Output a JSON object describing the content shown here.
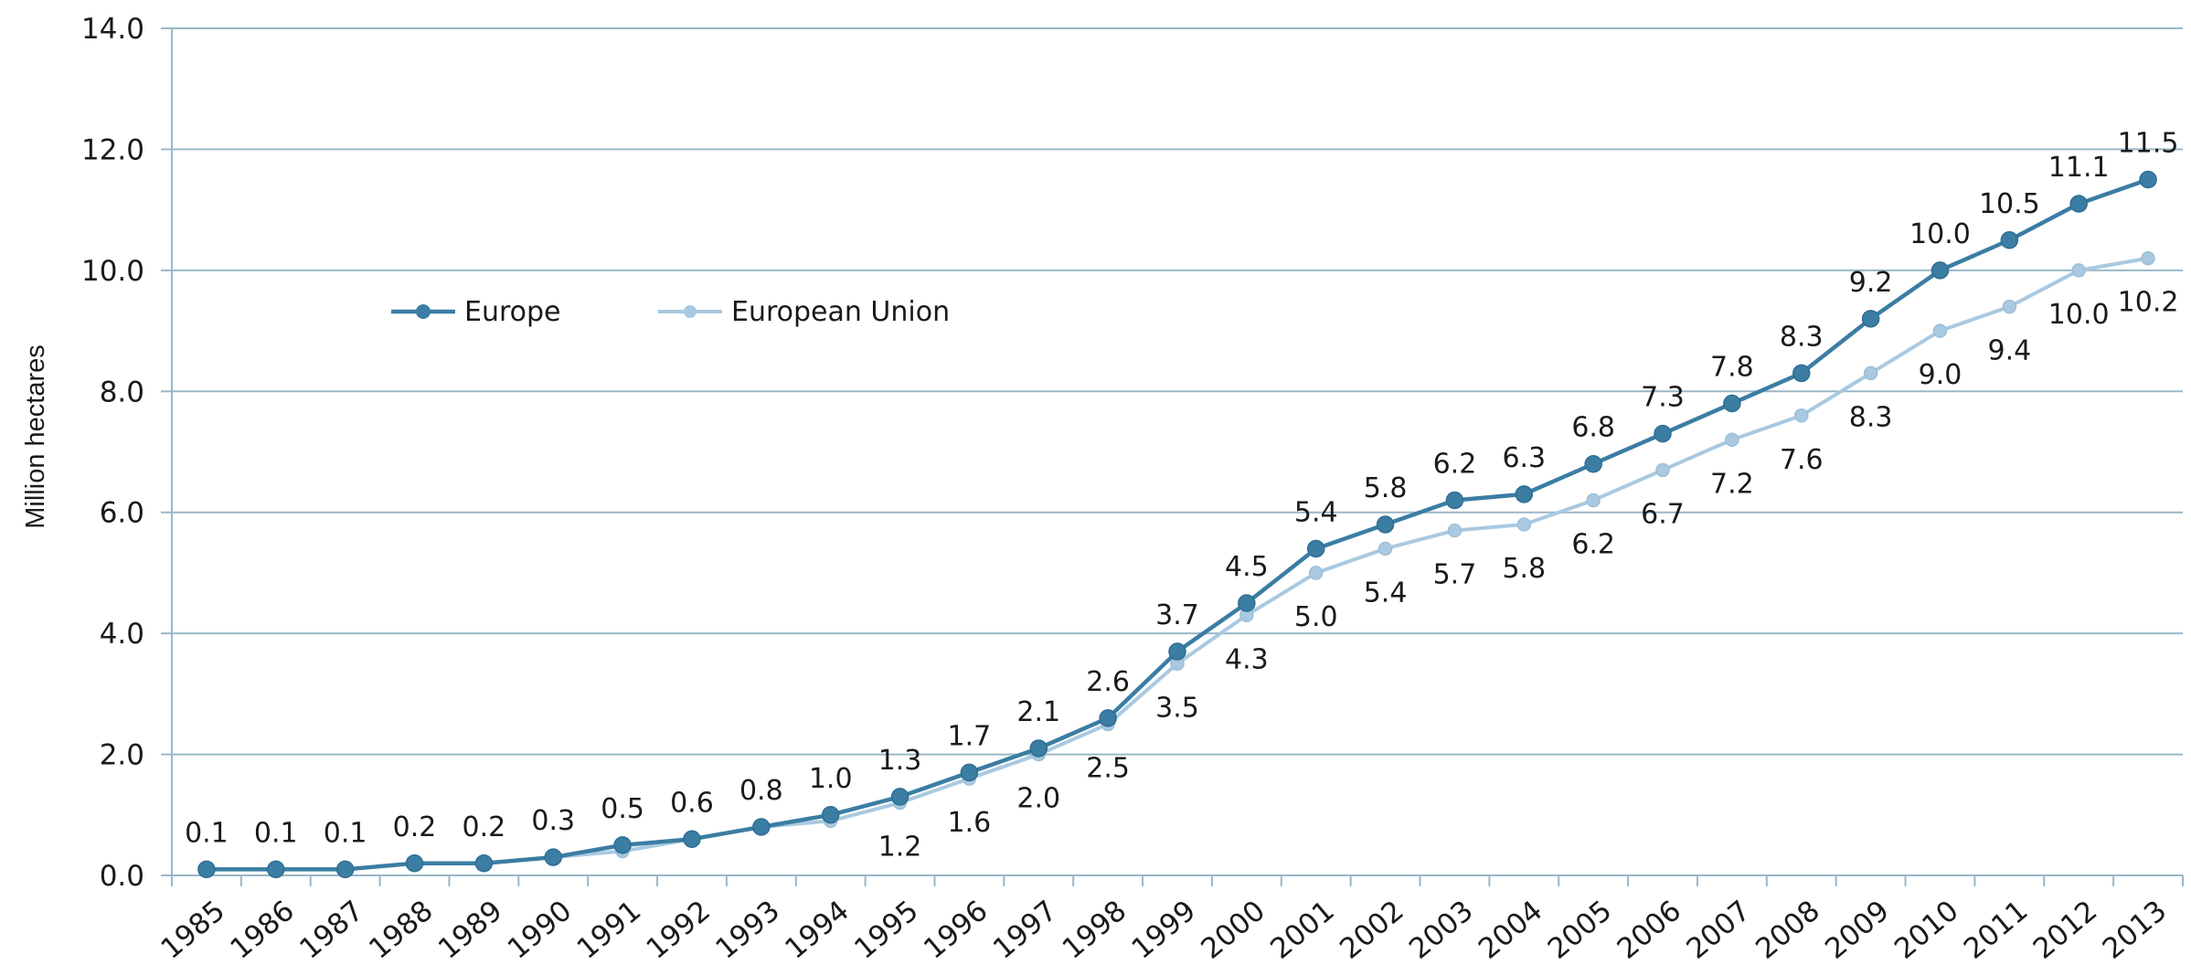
{
  "chart_data": {
    "type": "line",
    "title": "",
    "xlabel": "",
    "ylabel": "Million hectares",
    "ylim": [
      0,
      14
    ],
    "yticks": [
      "0.0",
      "2.0",
      "4.0",
      "6.0",
      "8.0",
      "10.0",
      "12.0",
      "14.0"
    ],
    "grid": true,
    "legend_position": "upper-left",
    "x": [
      "1985",
      "1986",
      "1987",
      "1988",
      "1989",
      "1990",
      "1991",
      "1992",
      "1993",
      "1994",
      "1995",
      "1996",
      "1997",
      "1998",
      "1999",
      "2000",
      "2001",
      "2002",
      "2003",
      "2004",
      "2005",
      "2006",
      "2007",
      "2008",
      "2009",
      "2010",
      "2011",
      "2012",
      "2013"
    ],
    "series": [
      {
        "name": "Europe",
        "color": "#3b7da3",
        "values": [
          0.1,
          0.1,
          0.1,
          0.2,
          0.2,
          0.3,
          0.5,
          0.6,
          0.8,
          1.0,
          1.3,
          1.7,
          2.1,
          2.6,
          3.7,
          4.5,
          5.4,
          5.8,
          6.2,
          6.3,
          6.8,
          7.3,
          7.8,
          8.3,
          9.2,
          10.0,
          10.5,
          11.1,
          11.5
        ],
        "labels": [
          "0.1",
          "0.1",
          "0.1",
          "0.2",
          "0.2",
          "0.3",
          "0.5",
          "0.6",
          "0.8",
          "1.0",
          "1.3",
          "1.7",
          "2.1",
          "2.6",
          "3.7",
          "4.5",
          "5.4",
          "5.8",
          "6.2",
          "6.3",
          "6.8",
          "7.3",
          "7.8",
          "8.3",
          "9.2",
          "10.0",
          "10.5",
          "11.1",
          "11.5"
        ]
      },
      {
        "name": "European Union",
        "color": "#a9c9e0",
        "values": [
          0.1,
          0.1,
          0.1,
          0.2,
          0.2,
          0.3,
          0.4,
          0.6,
          0.8,
          0.9,
          1.2,
          1.6,
          2.0,
          2.5,
          3.5,
          4.3,
          5.0,
          5.4,
          5.7,
          5.8,
          6.2,
          6.7,
          7.2,
          7.6,
          8.3,
          9.0,
          9.4,
          10.0,
          10.2
        ],
        "labels": [
          "",
          "",
          "",
          "",
          "",
          "",
          "",
          "",
          "",
          "",
          "1.2",
          "1.6",
          "2.0",
          "2.5",
          "3.5",
          "4.3",
          "5.0",
          "5.4",
          "5.7",
          "5.8",
          "6.2",
          "6.7",
          "7.2",
          "7.6",
          "8.3",
          "9.0",
          "9.4",
          "10.0",
          "10.2"
        ]
      }
    ]
  }
}
